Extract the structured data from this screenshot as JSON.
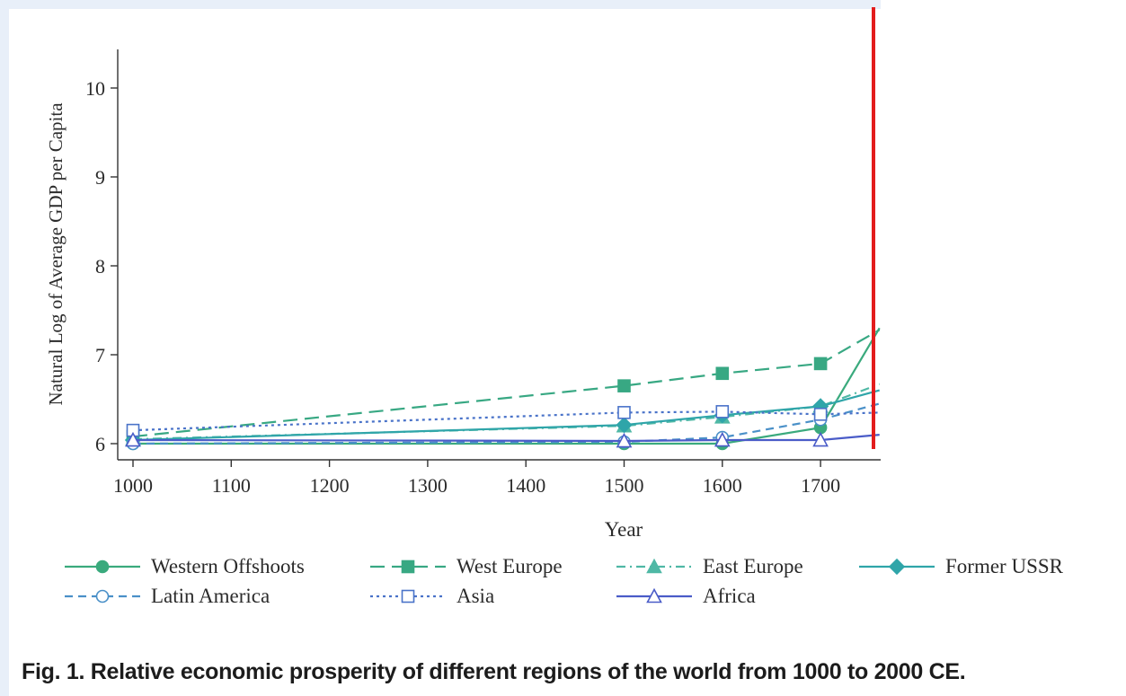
{
  "chart_data": {
    "type": "line",
    "title": "",
    "xlabel": "Year",
    "ylabel": "Natural Log of Average GDP per Capita",
    "xlim": [
      1000,
      1760
    ],
    "ylim": [
      5.95,
      10.4
    ],
    "x_ticks": [
      "1000",
      "1100",
      "1200",
      "1300",
      "1400",
      "1500",
      "1600",
      "1700"
    ],
    "y_ticks": [
      "6",
      "7",
      "8",
      "9",
      "10"
    ],
    "grid": false,
    "legend_position": "bottom",
    "series": [
      {
        "name": "Western Offshoots",
        "color": "#3aaa7d",
        "dash": "solid",
        "marker": "circle-filled",
        "x": [
          1000,
          1500,
          1600,
          1700,
          1760
        ],
        "y": [
          6.0,
          6.0,
          6.0,
          6.18,
          7.3
        ]
      },
      {
        "name": "West Europe",
        "color": "#38a883",
        "dash": "long-dash",
        "marker": "square-filled",
        "x": [
          1000,
          1500,
          1600,
          1700,
          1760
        ],
        "y": [
          6.08,
          6.65,
          6.79,
          6.9,
          7.28
        ]
      },
      {
        "name": "East Europe",
        "color": "#4fb8a5",
        "dash": "dash-dot",
        "marker": "triangle-filled",
        "x": [
          1000,
          1500,
          1600,
          1700,
          1760
        ],
        "y": [
          6.05,
          6.2,
          6.3,
          6.42,
          6.67
        ]
      },
      {
        "name": "Former USSR",
        "color": "#2fa5a9",
        "dash": "solid",
        "marker": "diamond-filled",
        "x": [
          1000,
          1500,
          1600,
          1700,
          1760
        ],
        "y": [
          6.04,
          6.21,
          6.32,
          6.42,
          6.6
        ]
      },
      {
        "name": "Latin America",
        "color": "#4a90c8",
        "dash": "dash",
        "marker": "circle-open",
        "x": [
          1000,
          1500,
          1600,
          1700,
          1760
        ],
        "y": [
          6.0,
          6.02,
          6.07,
          6.27,
          6.45
        ]
      },
      {
        "name": "Asia",
        "color": "#4a73c9",
        "dash": "dot",
        "marker": "square-open",
        "x": [
          1000,
          1500,
          1600,
          1700,
          1760
        ],
        "y": [
          6.15,
          6.35,
          6.36,
          6.33,
          6.35
        ]
      },
      {
        "name": "Africa",
        "color": "#4a5cc8",
        "dash": "solid",
        "marker": "triangle-open",
        "x": [
          1000,
          1500,
          1600,
          1700,
          1760
        ],
        "y": [
          6.04,
          6.03,
          6.04,
          6.04,
          6.1
        ]
      }
    ],
    "annotations": [
      {
        "type": "vertical-line",
        "color": "#e31d1d",
        "x": 1758
      }
    ]
  },
  "caption": "Fig. 1. Relative economic prosperity of different regions of the world from 1000 to 2000 CE."
}
